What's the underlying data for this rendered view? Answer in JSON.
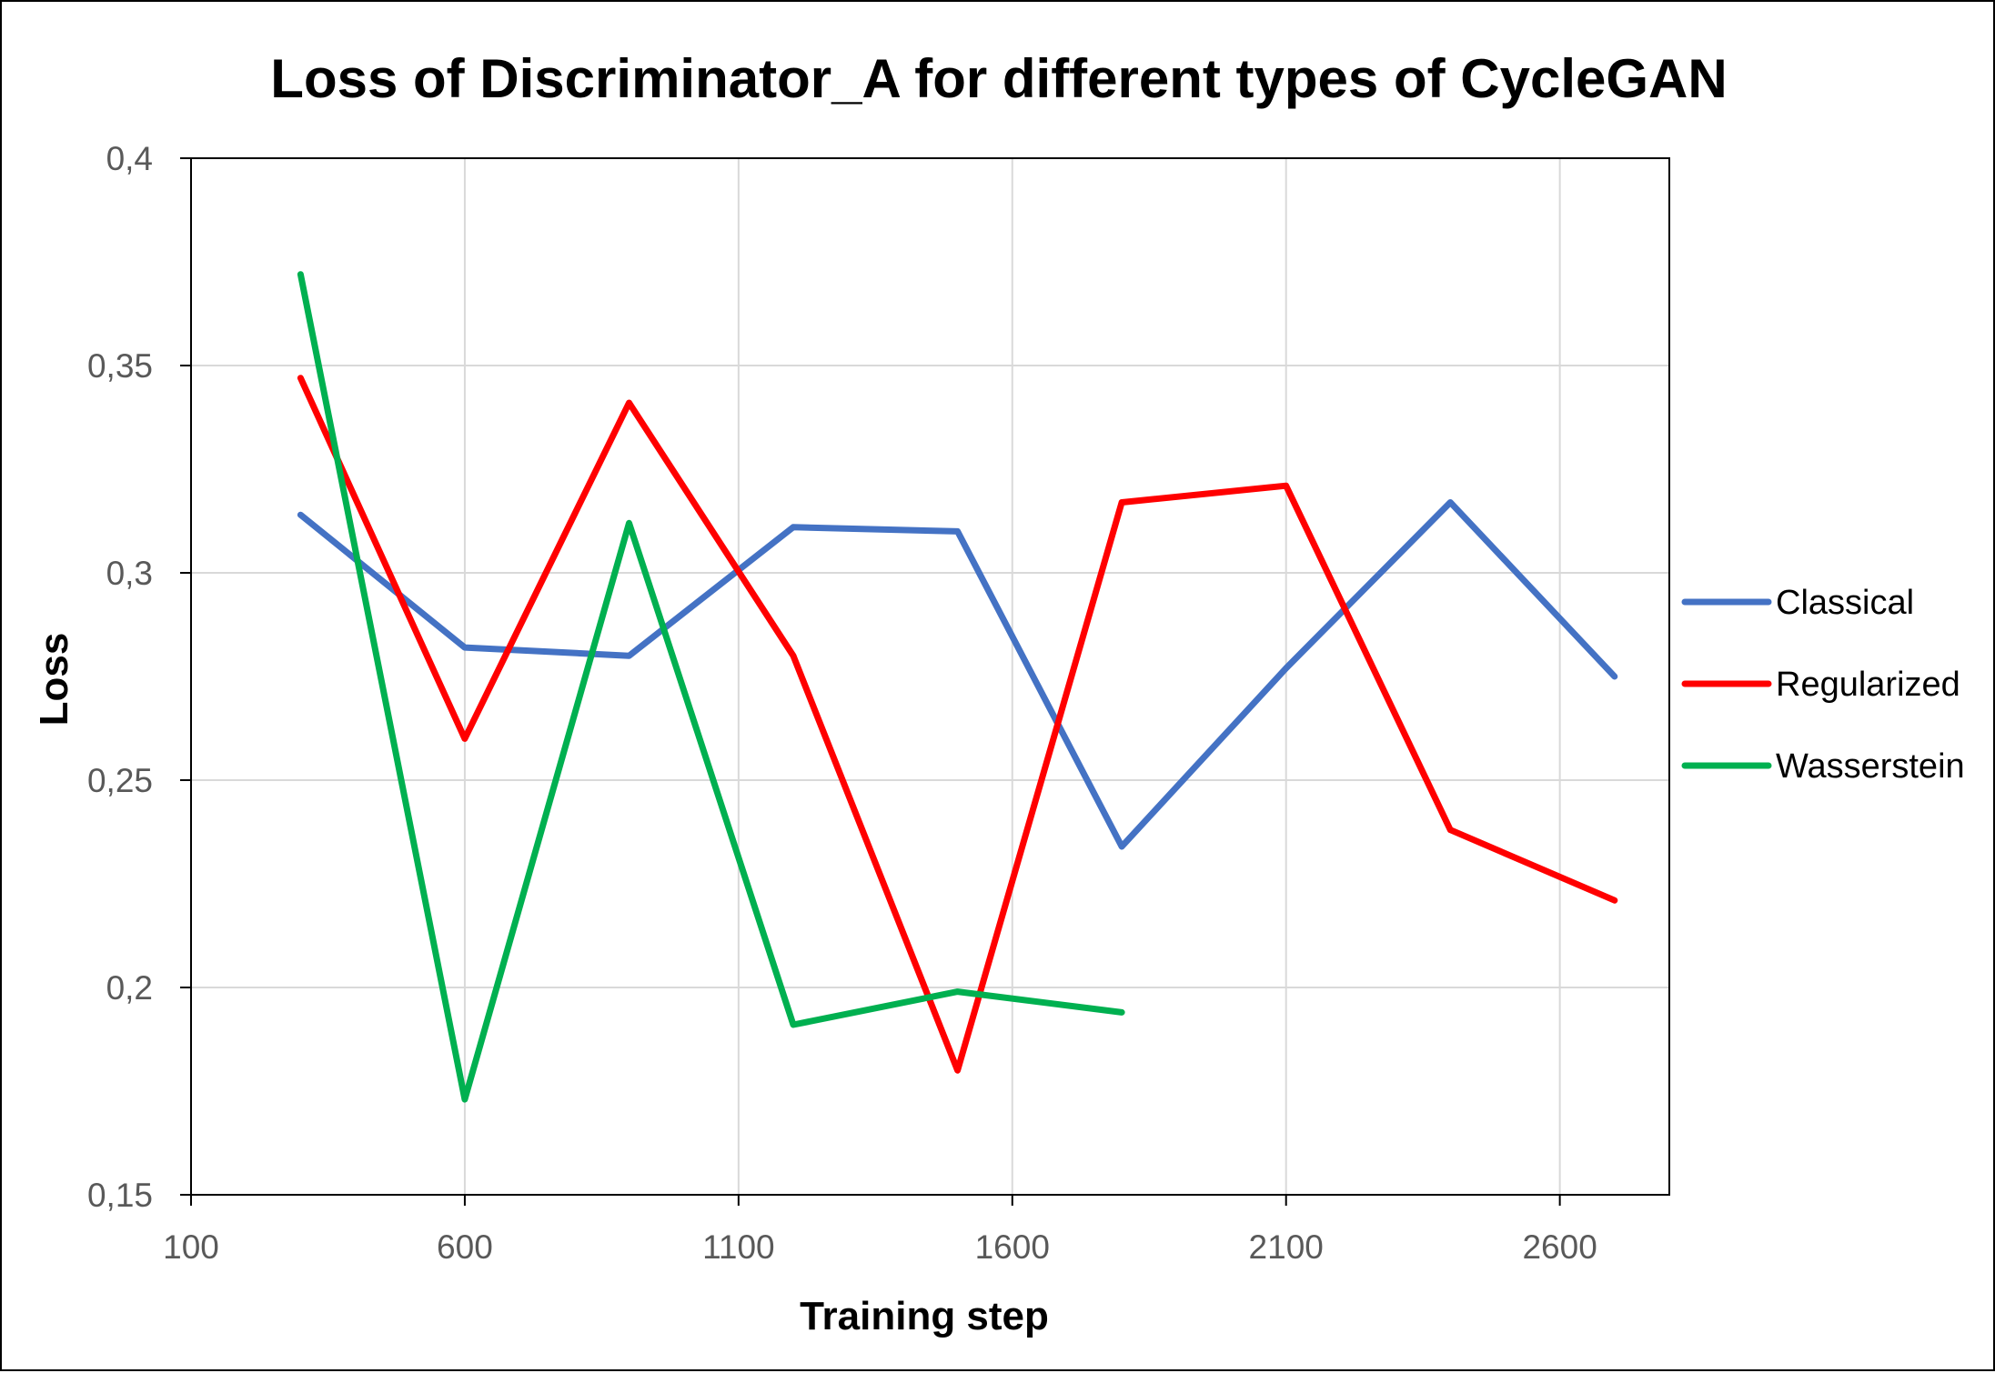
{
  "chart_data": {
    "type": "line",
    "title": "Loss of Discriminator_A for different types of CycleGAN",
    "xlabel": "Training step",
    "ylabel": "Loss",
    "xlim": [
      100,
      2800
    ],
    "ylim": [
      0.15,
      0.4
    ],
    "xticks": [
      100,
      600,
      1100,
      1600,
      2100,
      2600
    ],
    "xtick_labels": [
      "100",
      "600",
      "1100",
      "1600",
      "2100",
      "2600"
    ],
    "yticks": [
      0.15,
      0.2,
      0.25,
      0.3,
      0.35,
      0.4
    ],
    "ytick_labels": [
      "0,15",
      "0,2",
      "0,25",
      "0,3",
      "0,35",
      "0,4"
    ],
    "grid": true,
    "legend_position": "right",
    "series": [
      {
        "name": "Classical",
        "color": "#4472C4",
        "x": [
          300,
          600,
          900,
          1200,
          1500,
          1800,
          2100,
          2400,
          2700
        ],
        "y": [
          0.314,
          0.282,
          0.28,
          0.311,
          0.31,
          0.234,
          0.277,
          0.317,
          0.275
        ]
      },
      {
        "name": "Regularized",
        "color": "#FF0000",
        "x": [
          300,
          600,
          900,
          1200,
          1500,
          1800,
          2100,
          2400,
          2700
        ],
        "y": [
          0.347,
          0.26,
          0.341,
          0.28,
          0.18,
          0.317,
          0.321,
          0.238,
          0.221
        ]
      },
      {
        "name": "Wasserstein",
        "color": "#00B050",
        "x": [
          300,
          600,
          900,
          1200,
          1500,
          1800
        ],
        "y": [
          0.372,
          0.173,
          0.312,
          0.191,
          0.199,
          0.194
        ]
      }
    ]
  }
}
